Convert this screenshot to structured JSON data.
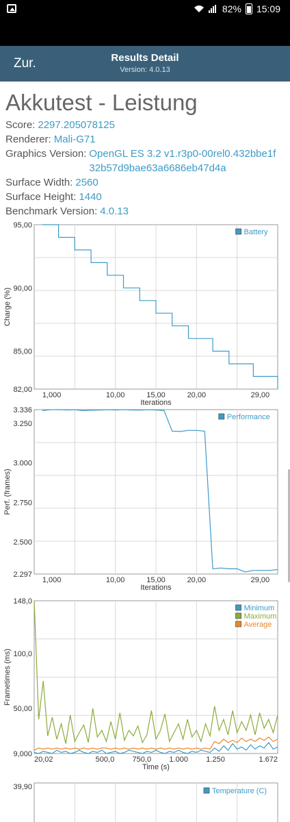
{
  "status_bar": {
    "battery": "82%",
    "time": "15:09"
  },
  "app_bar": {
    "back_label": "Zur.",
    "title": "Results Detail",
    "subtitle": "Version: 4.0.13"
  },
  "header": {
    "title": "Akkutest - Leistung",
    "rows": [
      {
        "key": "Score:",
        "value": "2297.205078125"
      },
      {
        "key": "Renderer:",
        "value": "Mali-G71"
      },
      {
        "key": "Graphics Version:",
        "value": "OpenGL ES 3.2 v1.r3p0-00rel0.432bbe1f32b57d9bae63a6686eb47d4a"
      },
      {
        "key": "Surface Width:",
        "value": "2560"
      },
      {
        "key": "Surface Height:",
        "value": "1440"
      },
      {
        "key": "Benchmark Version:",
        "value": "4.0.13"
      }
    ]
  },
  "colors": {
    "minimum": "#3d9bc6",
    "maximum": "#8aab3a",
    "average": "#e8892e",
    "battery": "#3d9bc6"
  },
  "chart_data": [
    {
      "type": "line",
      "ylabel": "Charge (%)",
      "xlabel": "Iterations",
      "ylim": [
        82,
        95
      ],
      "xlim": [
        0,
        30
      ],
      "xticks": [
        "1,000",
        "10,00",
        "15,00",
        "20,00",
        "29,00"
      ],
      "xtick_values": [
        1,
        10,
        15,
        20,
        29
      ],
      "yticks": [
        "95,00",
        "90,00",
        "85,00",
        "82,00"
      ],
      "ytick_values": [
        95,
        90,
        85,
        82
      ],
      "series": [
        {
          "name": "Battery",
          "x": [
            1,
            2,
            3,
            4,
            5,
            6,
            7,
            8,
            9,
            10,
            11,
            12,
            13,
            14,
            15,
            16,
            17,
            18,
            19,
            20,
            21,
            22,
            23,
            24,
            25,
            26,
            27,
            28,
            29,
            30
          ],
          "values": [
            95,
            95,
            94,
            94,
            93,
            93,
            92,
            92,
            91,
            91,
            90,
            90,
            89,
            89,
            88,
            88,
            87,
            87,
            86,
            86,
            86,
            85,
            85,
            84,
            84,
            84,
            83,
            83,
            83,
            82
          ]
        }
      ]
    },
    {
      "type": "line",
      "ylabel": "Perf. (frames)",
      "xlabel": "Iterations",
      "ylim": [
        2.297,
        3.336
      ],
      "xlim": [
        0,
        30
      ],
      "xticks": [
        "1,000",
        "10,00",
        "15,00",
        "20,00",
        "29,00"
      ],
      "xtick_values": [
        1,
        10,
        15,
        20,
        29
      ],
      "yticks": [
        "3.336",
        "3.250",
        "3.000",
        "2.750",
        "2.500",
        "2.297"
      ],
      "ytick_values": [
        3.336,
        3.25,
        3.0,
        2.75,
        2.5,
        2.297
      ],
      "series": [
        {
          "name": "Performance",
          "x": [
            1,
            2,
            3,
            4,
            5,
            6,
            7,
            8,
            9,
            10,
            11,
            12,
            13,
            14,
            15,
            16,
            17,
            18,
            19,
            20,
            21,
            22,
            23,
            24,
            25,
            26,
            27,
            28,
            29,
            30
          ],
          "values": [
            3.33,
            3.335,
            3.336,
            3.334,
            3.335,
            3.33,
            3.332,
            3.333,
            3.335,
            3.334,
            3.336,
            3.334,
            3.333,
            3.335,
            3.334,
            3.33,
            3.2,
            3.198,
            3.205,
            3.205,
            3.2,
            2.33,
            2.335,
            2.33,
            2.33,
            2.31,
            2.32,
            2.32,
            2.32,
            2.325
          ]
        }
      ]
    },
    {
      "type": "line",
      "ylabel": "Frametimes (ms)",
      "xlabel": "Time (s)",
      "ylim": [
        9,
        148
      ],
      "xlim": [
        20.02,
        1672
      ],
      "xticks": [
        "20,02",
        "500,0",
        "750,0",
        "1.000",
        "1.250",
        "1.672"
      ],
      "xtick_values": [
        20.02,
        500,
        750,
        1000,
        1250,
        1672
      ],
      "yticks": [
        "148,0",
        "100,0",
        "50,00",
        "9,000"
      ],
      "ytick_values": [
        148,
        100,
        50,
        9
      ],
      "series": [
        {
          "name": "Minimum",
          "values": [
            10,
            9,
            11,
            10,
            9,
            12,
            10,
            11,
            9,
            10,
            12,
            10,
            9,
            11,
            10,
            12,
            9,
            10,
            11,
            9,
            10,
            12,
            11,
            10,
            9,
            11,
            10,
            12,
            10,
            9,
            11,
            10,
            12,
            10,
            9,
            11,
            10,
            12,
            11,
            10,
            14,
            11,
            16,
            12,
            18,
            13,
            15,
            12,
            17,
            13,
            16,
            14,
            19,
            13,
            15
          ]
        },
        {
          "name": "Maximum",
          "values": [
            148,
            40,
            75,
            25,
            42,
            22,
            36,
            18,
            44,
            20,
            28,
            35,
            19,
            50,
            24,
            30,
            20,
            38,
            22,
            46,
            21,
            30,
            25,
            34,
            19,
            26,
            48,
            22,
            30,
            45,
            20,
            28,
            36,
            22,
            40,
            24,
            30,
            20,
            36,
            25,
            52,
            30,
            40,
            26,
            48,
            28,
            38,
            30,
            44,
            26,
            46,
            32,
            40,
            28,
            44
          ]
        },
        {
          "name": "Average",
          "values": [
            12,
            14,
            13,
            14,
            13,
            14,
            13,
            14,
            13,
            14,
            13,
            14,
            13,
            14,
            13,
            14,
            14,
            13,
            14,
            13,
            14,
            13,
            14,
            13,
            14,
            13,
            14,
            13,
            14,
            13,
            14,
            13,
            14,
            13,
            14,
            13,
            14,
            13,
            14,
            13,
            20,
            18,
            22,
            19,
            21,
            19,
            23,
            20,
            22,
            20,
            23,
            21,
            24,
            20,
            22
          ]
        }
      ]
    },
    {
      "type": "line",
      "ylabel": "",
      "xlabel": "",
      "yticks": [
        "39,90"
      ],
      "series": [
        {
          "name": "Temperature (C)",
          "values": []
        }
      ]
    }
  ]
}
